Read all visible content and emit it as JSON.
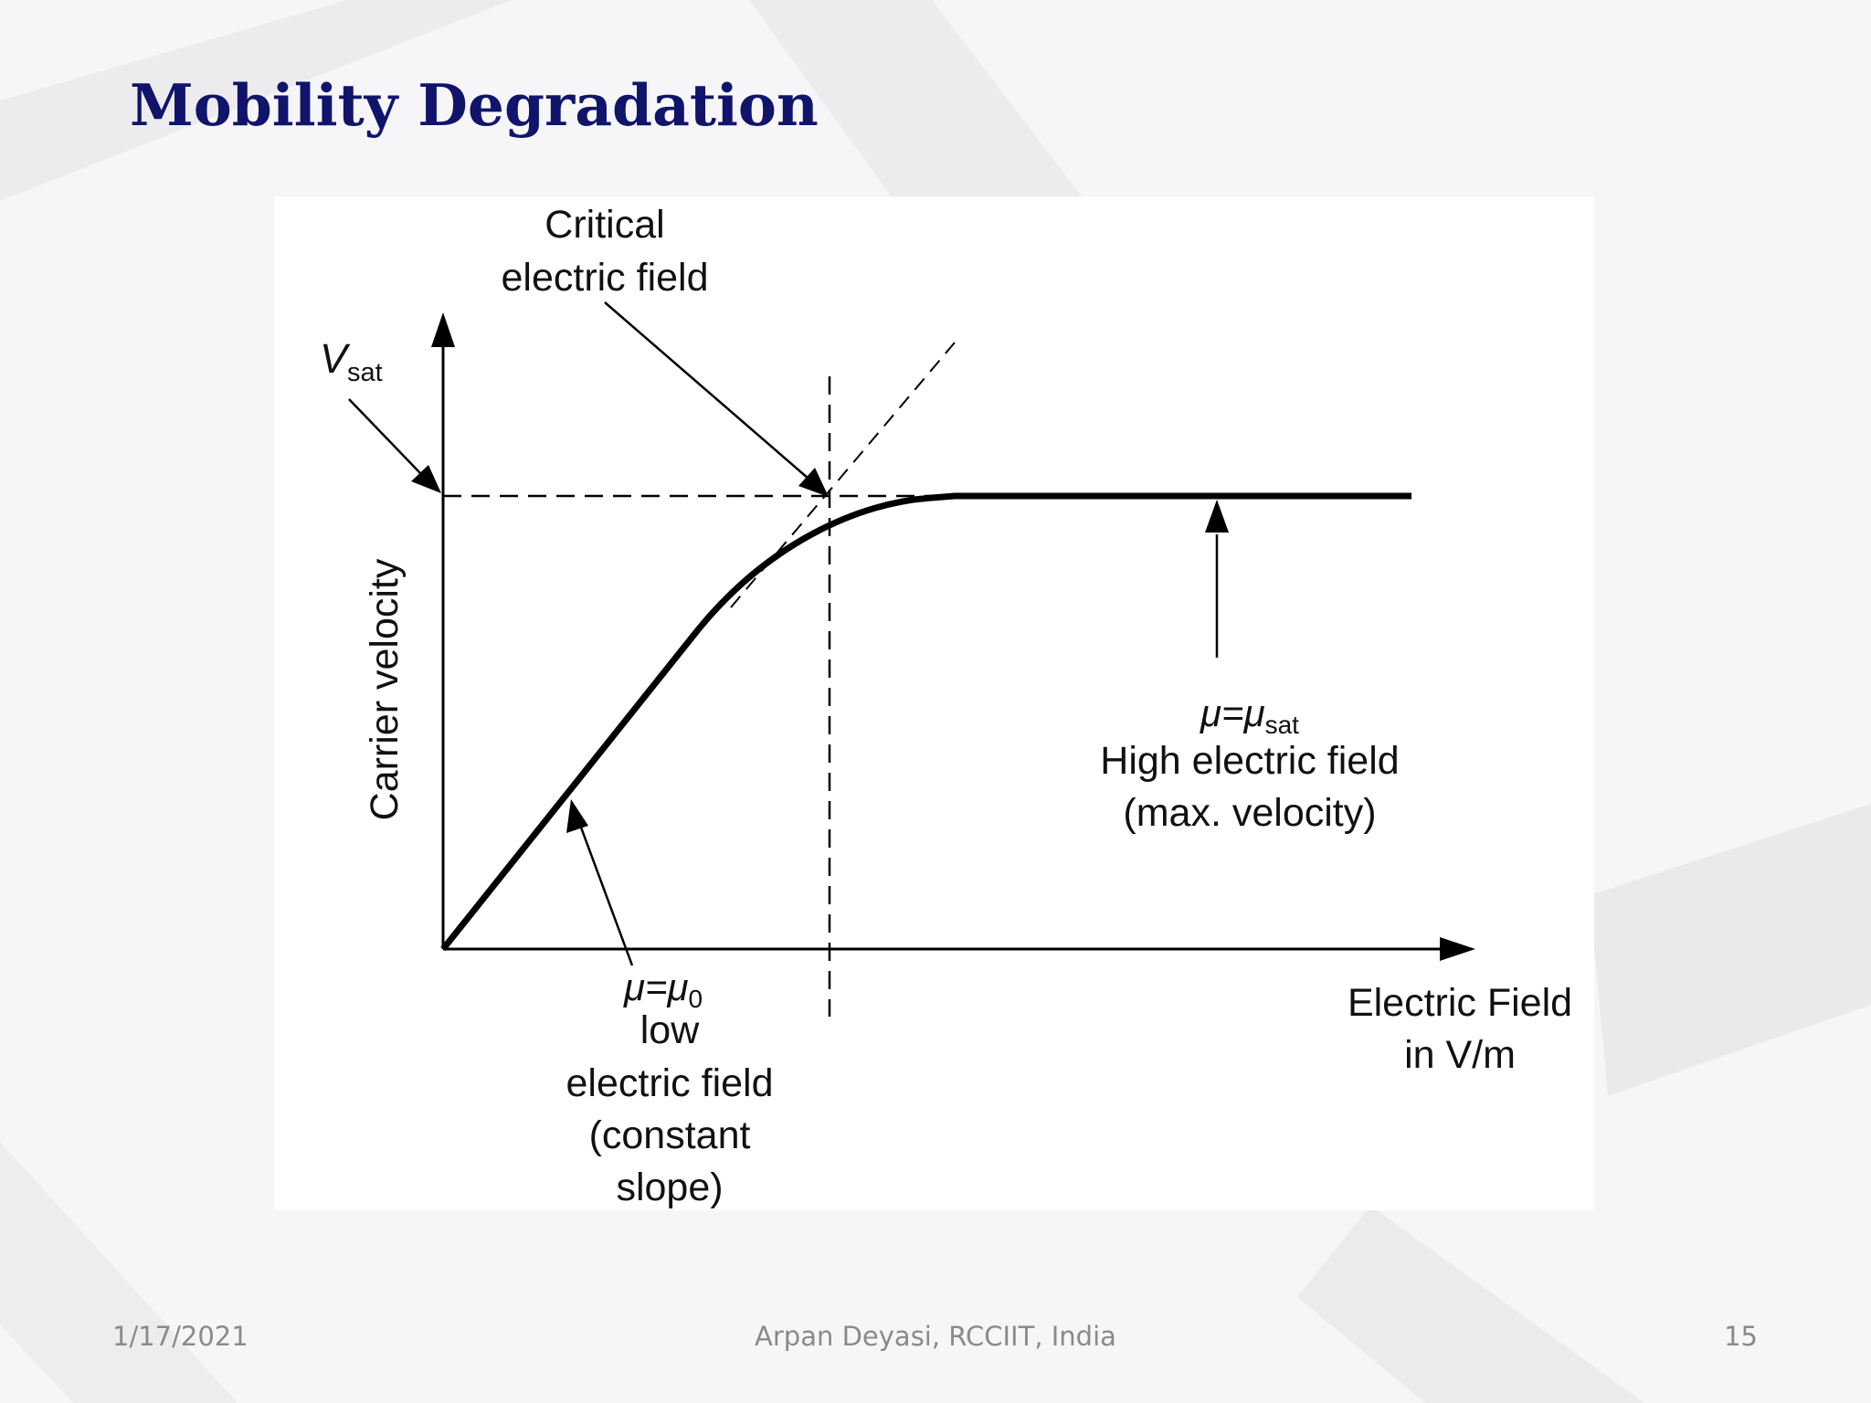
{
  "slide": {
    "title": "Mobility Degradation"
  },
  "diagram": {
    "y_axis_label": "Carrier velocity",
    "vsat_label": {
      "main": "V",
      "sub": "sat"
    },
    "critical_label": [
      "Critical",
      "electric field"
    ],
    "high_field_label": {
      "mu_main": "μ=μ",
      "mu_sub": "sat",
      "lines": [
        "High electric field",
        "(max. velocity)"
      ]
    },
    "low_field_label": {
      "mu_main": "μ=μ",
      "mu_sub": "0",
      "lines": [
        "low",
        "electric field",
        "(constant",
        "slope)"
      ]
    },
    "x_axis_label": [
      "Electric Field",
      "in V/m"
    ],
    "colors": {
      "curve": "#000000",
      "dashed": "#000000",
      "title": "#10146b"
    }
  },
  "footer": {
    "date": "1/17/2021",
    "center": "Arpan Deyasi, RCCIIT, India",
    "page": "15"
  }
}
